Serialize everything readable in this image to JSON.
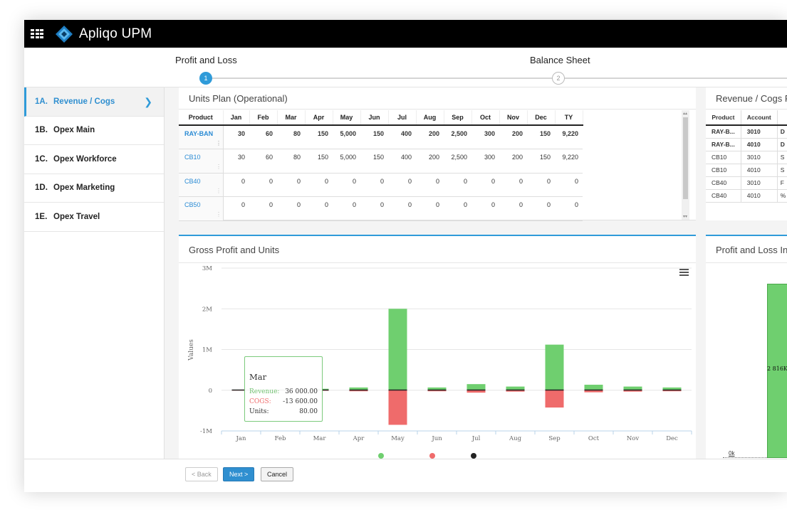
{
  "app": {
    "title": "Apliqo UPM"
  },
  "steps": [
    {
      "label": "Profit and Loss",
      "number": "1",
      "state": "active"
    },
    {
      "label": "Balance Sheet",
      "number": "2",
      "state": "inactive"
    }
  ],
  "sidebar": {
    "items": [
      {
        "code": "1A.",
        "label": "Revenue / Cogs",
        "active": true
      },
      {
        "code": "1B.",
        "label": "Opex Main"
      },
      {
        "code": "1C.",
        "label": "Opex Workforce"
      },
      {
        "code": "1D.",
        "label": "Opex Marketing"
      },
      {
        "code": "1E.",
        "label": "Opex Travel"
      }
    ]
  },
  "units_plan": {
    "title": "Units Plan (Operational)",
    "columns": [
      "Product",
      "Jan",
      "Feb",
      "Mar",
      "Apr",
      "May",
      "Jun",
      "Jul",
      "Aug",
      "Sep",
      "Oct",
      "Nov",
      "Dec",
      "TY"
    ],
    "rows": [
      {
        "product": "RAY-BAN",
        "bold": true,
        "values": [
          "30",
          "60",
          "80",
          "150",
          "5,000",
          "150",
          "400",
          "200",
          "2,500",
          "300",
          "200",
          "150",
          "9,220"
        ]
      },
      {
        "product": "CB10",
        "bold": false,
        "values": [
          "30",
          "60",
          "80",
          "150",
          "5,000",
          "150",
          "400",
          "200",
          "2,500",
          "300",
          "200",
          "150",
          "9,220"
        ]
      },
      {
        "product": "CB40",
        "bold": false,
        "values": [
          "0",
          "0",
          "0",
          "0",
          "0",
          "0",
          "0",
          "0",
          "0",
          "0",
          "0",
          "0",
          "0"
        ]
      },
      {
        "product": "CB50",
        "bold": false,
        "values": [
          "0",
          "0",
          "0",
          "0",
          "0",
          "0",
          "0",
          "0",
          "0",
          "0",
          "0",
          "0",
          "0"
        ]
      }
    ]
  },
  "revenue_cogs": {
    "title": "Revenue / Cogs P",
    "columns": [
      "Product",
      "Account"
    ],
    "rows": [
      {
        "product": "RAY-B...",
        "account": "3010",
        "bold": true,
        "trail": "D"
      },
      {
        "product": "RAY-B...",
        "account": "4010",
        "bold": true,
        "trail": "D"
      },
      {
        "product": "CB10",
        "account": "3010",
        "bold": false,
        "trail": "S"
      },
      {
        "product": "CB10",
        "account": "4010",
        "bold": false,
        "trail": "S"
      },
      {
        "product": "CB40",
        "account": "3010",
        "bold": false,
        "trail": "F"
      },
      {
        "product": "CB40",
        "account": "4010",
        "bold": false,
        "trail": "%"
      }
    ]
  },
  "gross_profit_chart": {
    "title": "Gross Profit and Units",
    "ylabel": "Values",
    "menu_icon": "hamburger-icon",
    "tooltip": {
      "title": "Mar",
      "revenue_label": "Revenue:",
      "revenue_value": "36 000.00",
      "cogs_label": "COGS:",
      "cogs_value": "-13 600.00",
      "units_label": "Units:",
      "units_value": "80.00"
    }
  },
  "chart_data": {
    "type": "bar",
    "categories": [
      "Jan",
      "Feb",
      "Mar",
      "Apr",
      "May",
      "Jun",
      "Jul",
      "Aug",
      "Sep",
      "Oct",
      "Nov",
      "Dec"
    ],
    "series": [
      {
        "values": [
          13500,
          27000,
          36000,
          67500,
          2000000,
          67500,
          150000,
          90000,
          1120000,
          135000,
          90000,
          67500
        ]
      },
      {
        "values": [
          -5100,
          -10200,
          -13600,
          -25500,
          -850000,
          -25500,
          -60000,
          -34000,
          -425000,
          -51000,
          -34000,
          -25500
        ]
      }
    ],
    "ylabel": "Values",
    "ylim": [
      -1000000,
      3000000
    ],
    "yticks": [
      "3M",
      "2M",
      "1M",
      "0",
      "-1M"
    ],
    "colors": {
      "revenue": "#6fcf6f",
      "cogs": "#ef6b6b",
      "units": "#222222"
    }
  },
  "pl_panel": {
    "title": "Profit and Loss In",
    "bar_label": "2 816K",
    "zero_label": "0k"
  },
  "footer": {
    "back_label": "< Back",
    "next_label": "Next >",
    "cancel_label": "Cancel"
  }
}
